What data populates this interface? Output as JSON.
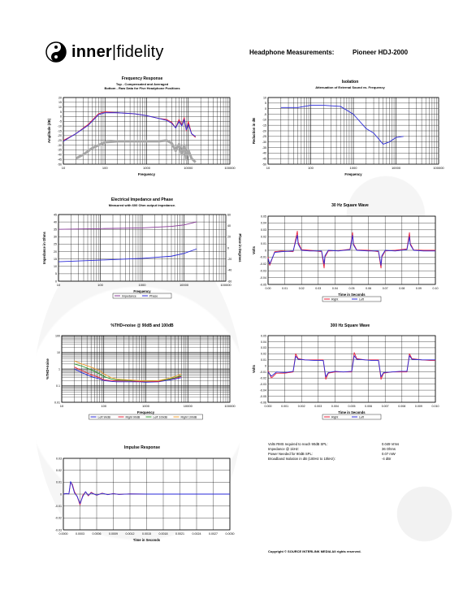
{
  "header": {
    "logo_main": "inner",
    "logo_sep": "|",
    "logo_second": "fidelity",
    "label": "Headphone Measurements:",
    "model": "Pioneer HDJ-2000"
  },
  "specs": {
    "rows": [
      {
        "label": "Volts RMS required to reach 90dB SPL:",
        "value": "0.049 Vrms"
      },
      {
        "label": "Impedance @ 1kHz:",
        "value": "36 Ohms"
      },
      {
        "label": "Power Needed for 90dB SPL:",
        "value": "0.07 mW"
      },
      {
        "label": "Broadband Isolation in dB (100Hz to 10kHz):",
        "value": "-4 dBr"
      }
    ]
  },
  "copyright": "Copyright © SOURCE INTERLINK MEDIA All rights reserved.",
  "colors": {
    "red": "#e8203a",
    "blue": "#2a2ad8",
    "green": "#2c9a2c",
    "orange": "#f0a030",
    "gray": "#a8a8a8",
    "purple": "#8a3a9a"
  },
  "chart_data": [
    {
      "id": "freq",
      "type": "line",
      "title": "Frequency Response",
      "subtitle": [
        "Top - Compensated and Averaged",
        "Bottom - Raw Data for Five Headphone Positions"
      ],
      "xlabel": "Frequency",
      "ylabel": "Amplitude (dB)",
      "xscale": "log",
      "xlim": [
        10,
        100000
      ],
      "ylim": [
        -50,
        20
      ],
      "xticks": [
        "10",
        "100",
        "1000",
        "10000",
        "100000"
      ],
      "yticks": [
        "20",
        "15",
        "10",
        "5",
        "0",
        "-5",
        "-10",
        "-15",
        "-20",
        "-25",
        "-30",
        "-35",
        "-40",
        "-45",
        "-50"
      ],
      "series": [
        {
          "color": "red",
          "x": [
            10,
            20,
            40,
            70,
            100,
            200,
            500,
            1000,
            2000,
            3000,
            4000,
            5000,
            6000,
            7000,
            8000,
            9000,
            10000,
            12000,
            15000
          ],
          "y": [
            -25,
            -18,
            -8,
            3,
            5,
            4,
            3,
            1,
            -2,
            -3,
            -6,
            -12,
            -3,
            -9,
            -1,
            -15,
            -5,
            -18,
            -22
          ]
        },
        {
          "color": "blue",
          "x": [
            10,
            20,
            40,
            70,
            100,
            200,
            500,
            1000,
            2000,
            3000,
            4000,
            5000,
            6000,
            7000,
            8000,
            9000,
            10000,
            12000,
            15000
          ],
          "y": [
            -26,
            -18,
            -9,
            2,
            4,
            4,
            3,
            1,
            -2,
            -4,
            -7,
            -12,
            -5,
            -10,
            -3,
            -14,
            -8,
            -18,
            -21
          ]
        },
        {
          "color": "gray",
          "x": [
            20,
            30,
            50,
            80,
            100,
            200,
            500,
            1000,
            2000,
            3000,
            4000,
            5000,
            6000,
            7000,
            8000,
            9000,
            10000,
            12000,
            15000
          ],
          "y": [
            -44,
            -40,
            -33,
            -29,
            -27,
            -26,
            -26,
            -26,
            -26,
            -25,
            -28,
            -36,
            -29,
            -40,
            -30,
            -45,
            -35,
            -44,
            -48
          ]
        }
      ]
    },
    {
      "id": "isolation",
      "type": "line",
      "title": "Isolation",
      "subtitle": [
        "Attenuation of External Sound vs. Frequency"
      ],
      "xlabel": "Frequency",
      "ylabel": "Reduction in dB",
      "xscale": "log",
      "xlim": [
        10,
        100000
      ],
      "ylim": [
        -50,
        10
      ],
      "xticks": [
        "10",
        "100",
        "1000",
        "10000",
        "100000"
      ],
      "yticks": [
        "10",
        "5",
        "0",
        "-5",
        "-10",
        "-15",
        "-20",
        "-25",
        "-30",
        "-35",
        "-40",
        "-45",
        "-50"
      ],
      "series": [
        {
          "color": "blue",
          "x": [
            20,
            50,
            100,
            200,
            500,
            1000,
            2000,
            3000,
            5000,
            7000,
            10000,
            15000
          ],
          "y": [
            1,
            1,
            3,
            3,
            2,
            -5,
            -18,
            -22,
            -32,
            -30,
            -26,
            -25
          ]
        }
      ]
    },
    {
      "id": "impedance",
      "type": "line",
      "title": "Electrical Impedance and Phase",
      "subtitle": [
        "Measured with 600 Ohm output impedance."
      ],
      "xlabel": "Frequency",
      "ylabel": "Impedance in Ohms",
      "y2label": "Phase in Degrees",
      "xscale": "log",
      "xlim": [
        10,
        100000
      ],
      "ylim": [
        0,
        45
      ],
      "y2lim": [
        -60,
        60
      ],
      "xticks": [
        "10",
        "100",
        "1000",
        "10000",
        "100000"
      ],
      "yticks": [
        "45",
        "40",
        "35",
        "30",
        "25",
        "20",
        "15",
        "10",
        "5",
        "0"
      ],
      "y2ticks": [
        "60",
        "40",
        "20",
        "0",
        "-20",
        "-40",
        "-60"
      ],
      "legend": [
        "Impedance",
        "Phase"
      ],
      "series": [
        {
          "name": "Impedance",
          "color": "purple",
          "x": [
            10,
            100,
            1000,
            5000,
            10000,
            20000
          ],
          "y": [
            35,
            35.5,
            36,
            37,
            38,
            40
          ]
        },
        {
          "name": "Phase",
          "color": "blue",
          "axis": "y2",
          "x": [
            10,
            100,
            1000,
            5000,
            10000,
            20000
          ],
          "y": [
            -25,
            -22,
            -19,
            -15,
            -10,
            -2
          ]
        }
      ]
    },
    {
      "id": "sq30",
      "type": "line",
      "title": "30 Hz Square Wave",
      "xlabel": "Time in Seconds",
      "ylabel": "Volts",
      "xlim": [
        0,
        0.1
      ],
      "ylim": [
        -0.05,
        0.05
      ],
      "xticks": [
        "0.00",
        "0.01",
        "0.02",
        "0.03",
        "0.04",
        "0.05",
        "0.06",
        "0.07",
        "0.08",
        "0.09",
        "0.10"
      ],
      "yticks": [
        "0.05",
        "0.04",
        "0.03",
        "0.02",
        "0.01",
        "0",
        "-0.01",
        "-0.02",
        "-0.03",
        "-0.04",
        "-0.05"
      ],
      "legend": [
        "Right",
        "Left"
      ],
      "series": [
        {
          "name": "Right",
          "color": "red",
          "x": [
            0,
            0.001,
            0.004,
            0.008,
            0.015,
            0.0175,
            0.018,
            0.02,
            0.025,
            0.032,
            0.0335,
            0.034,
            0.036,
            0.042,
            0.049,
            0.0505,
            0.051,
            0.053,
            0.06,
            0.066,
            0.0675,
            0.068,
            0.07,
            0.076,
            0.083,
            0.0845,
            0.085,
            0.087,
            0.093,
            0.1
          ],
          "y": [
            -0.01,
            -0.022,
            -0.002,
            -0.001,
            -0.002,
            0.028,
            0.012,
            0.001,
            0.0,
            -0.002,
            -0.026,
            -0.01,
            -0.001,
            -0.0005,
            0.0015,
            0.026,
            0.01,
            0.0005,
            0.0,
            -0.002,
            -0.026,
            -0.01,
            -0.001,
            0.0,
            0.002,
            0.026,
            0.01,
            0.0005,
            0.0,
            0.0
          ]
        },
        {
          "name": "Left",
          "color": "blue",
          "x": [
            0,
            0.001,
            0.004,
            0.008,
            0.015,
            0.0175,
            0.018,
            0.02,
            0.025,
            0.032,
            0.0335,
            0.034,
            0.036,
            0.042,
            0.049,
            0.0505,
            0.051,
            0.053,
            0.06,
            0.066,
            0.0675,
            0.068,
            0.07,
            0.076,
            0.083,
            0.0845,
            0.085,
            0.087,
            0.093,
            0.1
          ],
          "y": [
            -0.012,
            -0.02,
            -0.003,
            -0.002,
            -0.001,
            0.022,
            0.009,
            0.0,
            -0.001,
            -0.001,
            -0.02,
            -0.008,
            0.0,
            -0.001,
            0.001,
            0.022,
            0.008,
            0.0,
            -0.001,
            -0.001,
            -0.022,
            -0.008,
            0.0,
            -0.001,
            0.001,
            0.02,
            0.008,
            0.0,
            -0.001,
            -0.001
          ]
        }
      ]
    },
    {
      "id": "thd",
      "type": "line",
      "title": "%THD+noise @ 90dB and 100dB",
      "xlabel": "Frequency",
      "ylabel": "%THD+noise",
      "xscale": "log",
      "yscale": "log",
      "xlim": [
        10,
        100000
      ],
      "ylim": [
        0.01,
        100
      ],
      "xticks": [
        "10",
        "100",
        "1000",
        "10000",
        "100000"
      ],
      "yticks": [
        "100",
        "10",
        "1",
        "0.1",
        "0.01"
      ],
      "legend": [
        "Left 90dB",
        "Right 90dB",
        "Left 100dB",
        "Right 100dB"
      ],
      "series": [
        {
          "name": "Left 90dB",
          "color": "blue",
          "x": [
            20,
            30,
            50,
            80,
            100,
            150,
            200,
            400,
            700,
            1000,
            2000,
            3000,
            5000,
            7000
          ],
          "y": [
            1,
            0.6,
            0.35,
            0.25,
            0.2,
            0.18,
            0.17,
            0.17,
            0.17,
            0.16,
            0.17,
            0.2,
            0.25,
            0.3
          ]
        },
        {
          "name": "Right 90dB",
          "color": "red",
          "x": [
            20,
            30,
            50,
            80,
            100,
            150,
            200,
            400,
            700,
            1000,
            2000,
            3000,
            5000,
            7000
          ],
          "y": [
            1.3,
            0.8,
            0.45,
            0.3,
            0.22,
            0.2,
            0.19,
            0.19,
            0.18,
            0.18,
            0.18,
            0.22,
            0.28,
            0.35
          ]
        },
        {
          "name": "Left 100dB",
          "color": "green",
          "x": [
            20,
            30,
            50,
            80,
            100,
            150,
            200,
            400,
            700,
            1000,
            2000,
            3000,
            5000,
            7000
          ],
          "y": [
            2,
            1.5,
            0.9,
            0.5,
            0.35,
            0.25,
            0.22,
            0.2,
            0.2,
            0.19,
            0.2,
            0.22,
            0.3,
            0.4
          ]
        },
        {
          "name": "Right 100dB",
          "color": "orange",
          "x": [
            20,
            30,
            50,
            80,
            100,
            150,
            200,
            400,
            700,
            1000,
            2000,
            3000,
            5000,
            7000
          ],
          "y": [
            3,
            2,
            1.3,
            0.8,
            0.5,
            0.3,
            0.25,
            0.22,
            0.2,
            0.2,
            0.2,
            0.25,
            0.35,
            0.5
          ]
        }
      ]
    },
    {
      "id": "sq300",
      "type": "line",
      "title": "300 Hz Square Wave",
      "xlabel": "Time in Seconds",
      "ylabel": "Volts",
      "xlim": [
        0,
        0.01
      ],
      "ylim": [
        -0.06,
        0.05
      ],
      "xticks": [
        "0.000",
        "0.001",
        "0.002",
        "0.003",
        "0.004",
        "0.005",
        "0.006",
        "0.007",
        "0.008",
        "0.009",
        "0.010"
      ],
      "yticks": [
        "0.05",
        "0.04",
        "0.03",
        "0.02",
        "0.01",
        "0",
        "-0.01",
        "-0.02",
        "-0.03",
        "-0.04",
        "-0.05",
        "-0.06"
      ],
      "legend": [
        "Right",
        "Left"
      ],
      "series": [
        {
          "name": "Right",
          "color": "red",
          "x": [
            0,
            0.0002,
            0.0005,
            0.001,
            0.0015,
            0.00165,
            0.0018,
            0.0022,
            0.0028,
            0.0033,
            0.00345,
            0.0036,
            0.004,
            0.0045,
            0.005,
            0.00515,
            0.0053,
            0.0058,
            0.0062,
            0.0066,
            0.00675,
            0.0069,
            0.0074,
            0.0079,
            0.0083,
            0.00845,
            0.0086,
            0.0092,
            0.0097,
            0.01
          ],
          "y": [
            -0.008,
            -0.02,
            -0.012,
            -0.012,
            -0.01,
            0.02,
            0.012,
            0.01,
            0.01,
            0.01,
            -0.022,
            -0.012,
            -0.01,
            -0.01,
            -0.01,
            0.022,
            0.012,
            0.01,
            0.01,
            0.01,
            -0.022,
            -0.012,
            -0.01,
            -0.01,
            -0.01,
            0.02,
            0.012,
            0.01,
            0.009,
            0.009
          ]
        },
        {
          "name": "Left",
          "color": "blue",
          "x": [
            0,
            0.0002,
            0.0005,
            0.001,
            0.0015,
            0.00165,
            0.0018,
            0.0022,
            0.0028,
            0.0033,
            0.00345,
            0.0036,
            0.004,
            0.0045,
            0.005,
            0.00515,
            0.0053,
            0.0058,
            0.0062,
            0.0066,
            0.00675,
            0.0069,
            0.0074,
            0.0079,
            0.0083,
            0.00845,
            0.0086,
            0.0092,
            0.0097,
            0.01
          ],
          "y": [
            -0.01,
            -0.017,
            -0.01,
            -0.011,
            -0.009,
            0.016,
            0.011,
            0.01,
            0.009,
            0.009,
            -0.018,
            -0.011,
            -0.009,
            -0.01,
            -0.009,
            0.017,
            0.011,
            0.01,
            0.009,
            0.009,
            -0.018,
            -0.011,
            -0.01,
            -0.009,
            -0.009,
            0.017,
            0.011,
            0.01,
            0.01,
            0.01
          ]
        }
      ]
    },
    {
      "id": "impulse",
      "type": "line",
      "title": "Impulse Response",
      "xlabel": "Time in Seconds",
      "xlim": [
        0,
        0.003
      ],
      "ylim": [
        -0.03,
        0.03
      ],
      "xticks": [
        "0.0000",
        "0.0003",
        "0.0006",
        "0.0009",
        "0.0012",
        "0.0015",
        "0.0018",
        "0.0021",
        "0.0024",
        "0.0027",
        "0.0030"
      ],
      "yticks": [
        "0.03",
        "0.02",
        "0.01",
        "0",
        "-0.01",
        "-0.02",
        "-0.03"
      ],
      "series": [
        {
          "name": "Right",
          "color": "red",
          "x": [
            0,
            5e-05,
            0.0001,
            0.00013,
            0.00016,
            0.0002,
            0.00025,
            0.0003,
            0.00035,
            0.0004,
            0.00045,
            0.0005,
            0.0006,
            0.0007,
            0.0008,
            0.0009,
            0.001,
            0.0012,
            0.0015,
            0.002,
            0.003
          ],
          "y": [
            0,
            0.0005,
            0.0002,
            0.0095,
            0.0085,
            0.002,
            -0.002,
            -0.009,
            -0.001,
            0.002,
            -0.0015,
            0.0015,
            -0.001,
            0.0008,
            -0.0005,
            0.0005,
            -0.0003,
            0.0002,
            0,
            0,
            0
          ]
        },
        {
          "name": "Left",
          "color": "blue",
          "x": [
            0,
            5e-05,
            0.0001,
            0.00013,
            0.00016,
            0.0002,
            0.00025,
            0.0003,
            0.00035,
            0.0004,
            0.00045,
            0.0005,
            0.0006,
            0.0007,
            0.0008,
            0.0009,
            0.001,
            0.0012,
            0.0015,
            0.002,
            0.003
          ],
          "y": [
            0,
            0.0005,
            0.0001,
            0.0105,
            0.0075,
            0.001,
            -0.002,
            -0.008,
            -0.002,
            0.002,
            -0.001,
            0.001,
            -0.0008,
            0.0006,
            -0.0004,
            0.0003,
            -0.0002,
            0.0001,
            0,
            0,
            0
          ]
        }
      ]
    }
  ]
}
